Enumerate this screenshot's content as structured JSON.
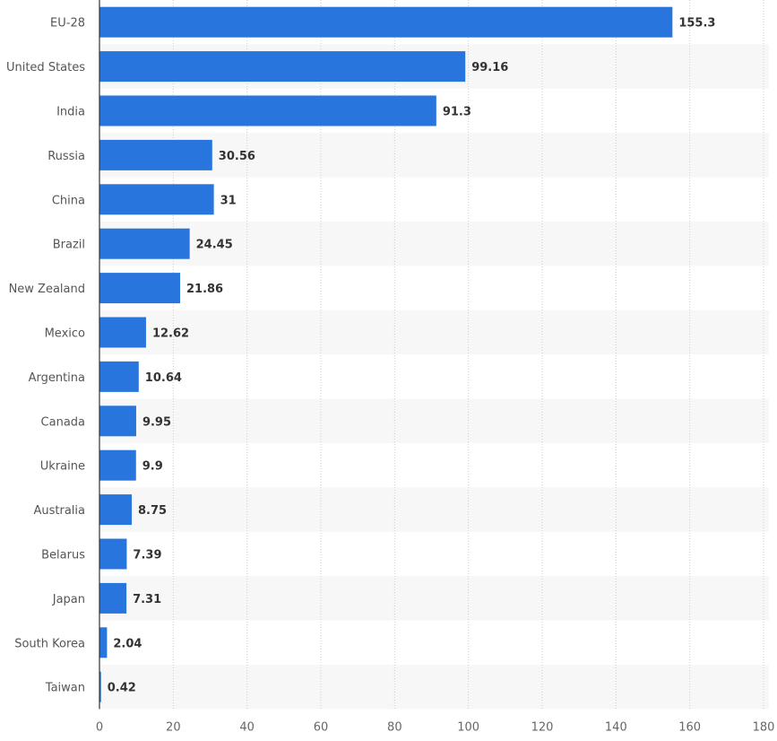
{
  "chart_data": {
    "type": "bar",
    "orientation": "horizontal",
    "categories": [
      "EU-28",
      "United States",
      "India",
      "Russia",
      "China",
      "Brazil",
      "New Zealand",
      "Mexico",
      "Argentina",
      "Canada",
      "Ukraine",
      "Australia",
      "Belarus",
      "Japan",
      "South Korea",
      "Taiwan"
    ],
    "values": [
      155.3,
      99.16,
      91.3,
      30.56,
      31,
      24.45,
      21.86,
      12.62,
      10.64,
      9.95,
      9.9,
      8.75,
      7.39,
      7.31,
      2.04,
      0.42
    ],
    "value_labels": [
      "155.3",
      "99.16",
      "91.3",
      "30.56",
      "31",
      "24.45",
      "21.86",
      "12.62",
      "10.64",
      "9.95",
      "9.9",
      "8.75",
      "7.39",
      "7.31",
      "2.04",
      "0.42"
    ],
    "xlim": [
      0,
      180
    ],
    "x_ticks": [
      "0",
      "20",
      "40",
      "60",
      "80",
      "100",
      "120",
      "140",
      "160",
      "180"
    ],
    "title": "",
    "xlabel": "",
    "ylabel": "",
    "grid": true,
    "legend": "none",
    "bar_color": "#2876dd",
    "stripe_color": "#f7f7f7"
  }
}
